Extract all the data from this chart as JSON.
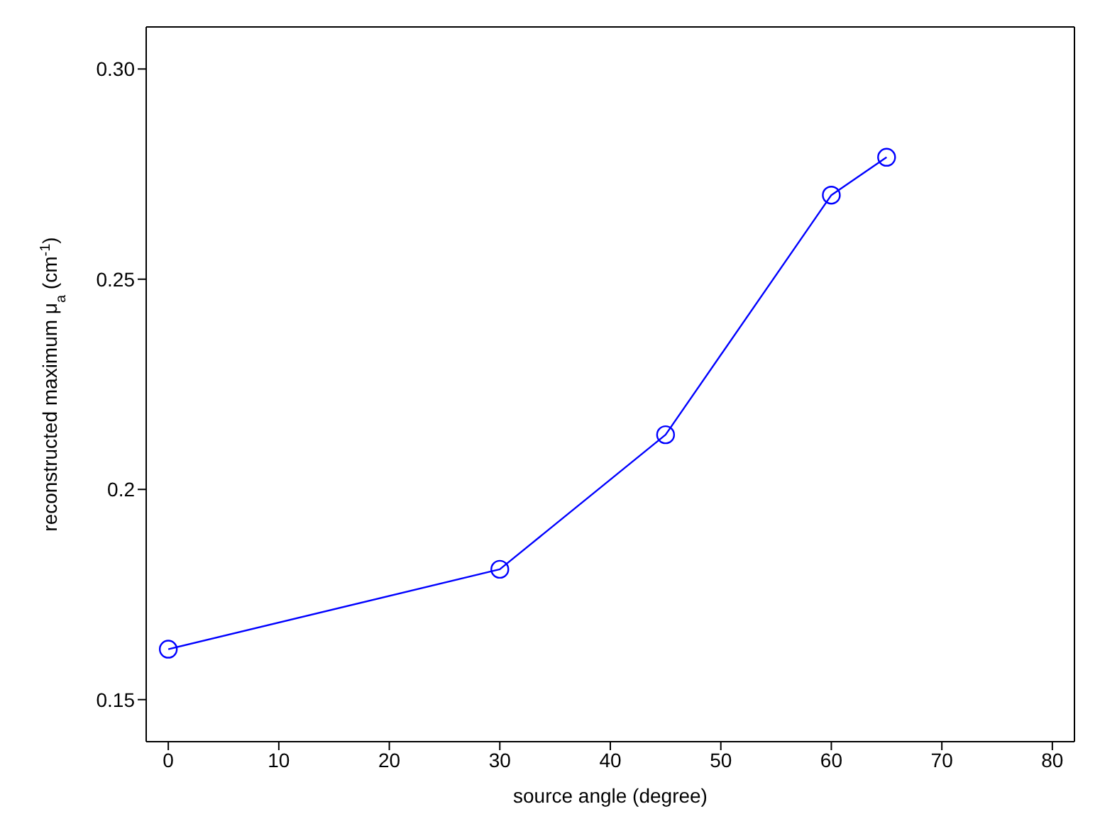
{
  "chart_data": {
    "type": "line",
    "xlabel": "source angle (degree)",
    "ylabel": "reconstructed maximum μ$_{a}$ (cm$^{-1}$)",
    "x": [
      0,
      30,
      45,
      60,
      65
    ],
    "series": [
      {
        "color": "#0000ff",
        "values": [
          0.162,
          0.181,
          0.213,
          0.27,
          0.279
        ]
      }
    ],
    "xlim": [
      -2,
      82
    ],
    "xticks": [
      0,
      10,
      20,
      30,
      40,
      50,
      60,
      70,
      80
    ],
    "ylim": [
      0.14,
      0.31
    ],
    "yticks": [
      0.15,
      0.2,
      0.25,
      {
        "value": 0.3,
        "label": "0.30"
      }
    ],
    "grid": false,
    "legend": false,
    "marker": "circle",
    "line_style": "solid"
  }
}
